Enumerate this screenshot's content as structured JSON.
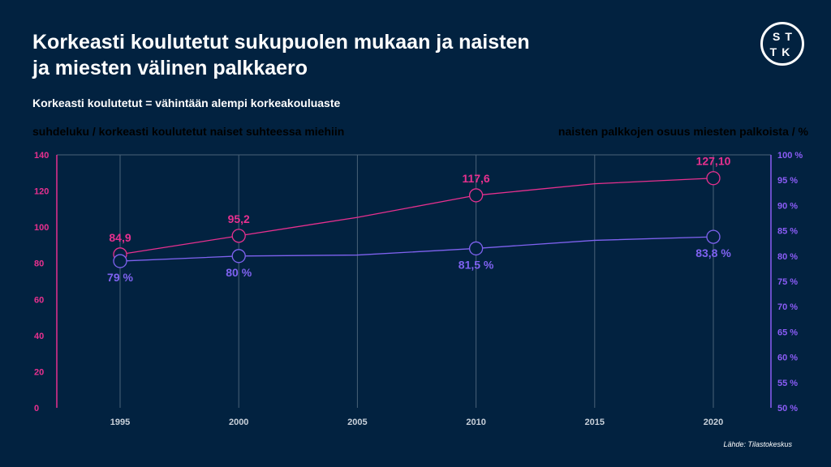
{
  "header": {
    "title": "Korkeasti koulutetut sukupuolen mukaan ja naisten ja miesten välinen palkkaero",
    "subtitle": "Korkeasti koulutetut = vähintään alempi korkeakouluaste",
    "logo_text": "STTK",
    "source": "Lähde: Tilastokeskus"
  },
  "chart_data": {
    "type": "line",
    "title": "Korkeasti koulutetut sukupuolen mukaan ja naisten ja miesten välinen palkkaero",
    "x": [
      1995,
      2000,
      2005,
      2010,
      2015,
      2020
    ],
    "xticks": [
      "1995",
      "2000",
      "2005",
      "2010",
      "2015",
      "2020"
    ],
    "y_left": {
      "label": "suhdeluku / korkeasti koulutetut naiset suhteessa miehiin",
      "range": [
        0,
        140
      ],
      "ticks": [
        "0",
        "20",
        "40",
        "60",
        "80",
        "100",
        "120",
        "140"
      ],
      "color": "#e8308f"
    },
    "y_right": {
      "label": "naisten palkkojen osuus miesten palkoista / %",
      "range": [
        50,
        100
      ],
      "ticks": [
        "50 %",
        "55 %",
        "60 %",
        "65 %",
        "70 %",
        "75 %",
        "80 %",
        "85 %",
        "90 %",
        "95 %",
        "100 %"
      ],
      "color": "#8b5cf6"
    },
    "series": [
      {
        "axis": "left",
        "color": "#e8308f",
        "values": [
          84.9,
          95.2,
          105.4,
          117.6,
          124,
          127.1
        ],
        "labels": [
          "84,9",
          "95,2",
          null,
          "117,6",
          null,
          "127,10"
        ]
      },
      {
        "axis": "right",
        "color": "#7f62f0",
        "values": [
          79,
          80,
          80.2,
          81.5,
          83.1,
          83.8
        ],
        "labels": [
          "79 %",
          "80 %",
          null,
          "81,5 %",
          null,
          "83,8 %"
        ]
      }
    ],
    "grid": "vertical"
  }
}
